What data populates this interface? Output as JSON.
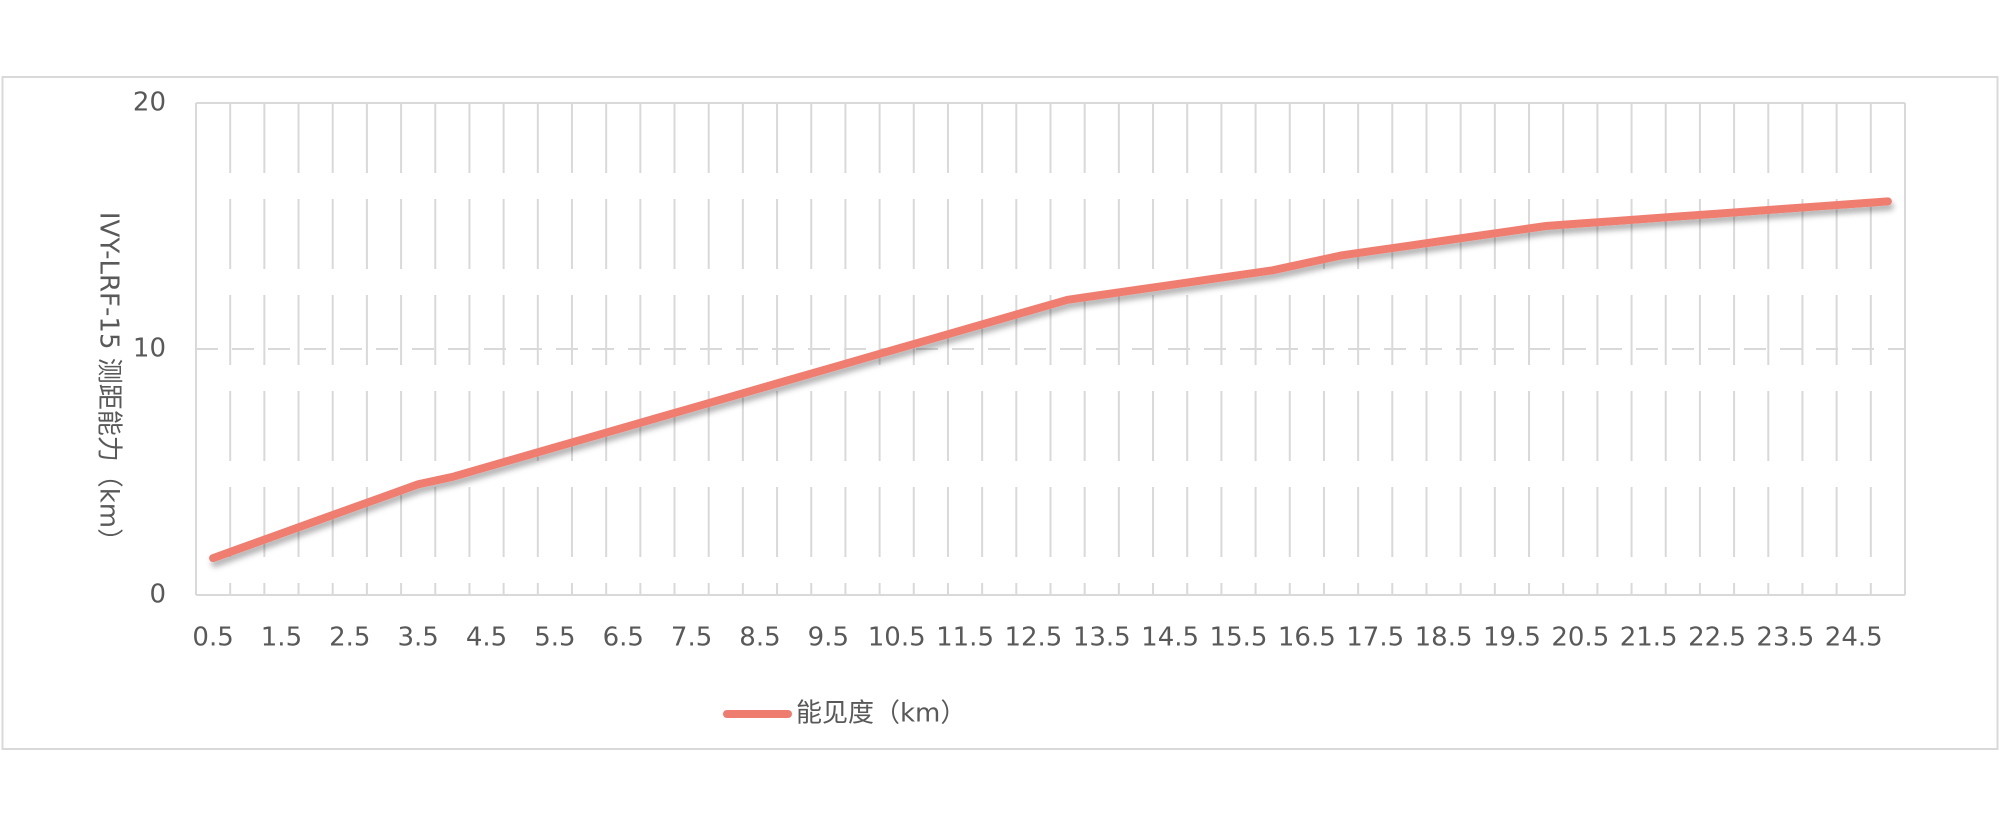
{
  "chart_data": {
    "type": "line",
    "y_label": "IVY-LRF-15 测距能力（km）",
    "categories": [
      "0.5",
      null,
      "1.5",
      null,
      "2.5",
      null,
      "3.5",
      null,
      "4.5",
      null,
      "5.5",
      null,
      "6.5",
      null,
      "7.5",
      null,
      "8.5",
      null,
      "9.5",
      null,
      "10.5",
      null,
      "11.5",
      null,
      "12.5",
      null,
      "13.5",
      null,
      "14.5",
      null,
      "15.5",
      null,
      "16.5",
      null,
      "17.5",
      null,
      "18.5",
      null,
      "19.5",
      null,
      "20.5",
      null,
      "21.5",
      null,
      "22.5",
      null,
      "23.5",
      null,
      "24.5",
      null
    ],
    "series": [
      {
        "name": "能见度（km）",
        "color": "#ef7d6f",
        "values": [
          1.5,
          2.0,
          2.5,
          3.0,
          3.5,
          4.0,
          4.5,
          4.8,
          5.2,
          5.6,
          6.0,
          6.4,
          6.8,
          7.2,
          7.6,
          8.0,
          8.4,
          8.8,
          9.2,
          9.6,
          10.0,
          10.4,
          10.8,
          11.2,
          11.6,
          12.0,
          12.2,
          12.4,
          12.6,
          12.8,
          13.0,
          13.2,
          13.5,
          13.8,
          14.0,
          14.2,
          14.4,
          14.6,
          14.8,
          15.0,
          15.1,
          15.2,
          15.3,
          15.4,
          15.5,
          15.6,
          15.7,
          15.8,
          15.9,
          16.0
        ]
      }
    ],
    "ylim": [
      0,
      20
    ],
    "yticks": [
      0,
      10,
      20
    ],
    "grid": true,
    "legend": "bottom"
  }
}
